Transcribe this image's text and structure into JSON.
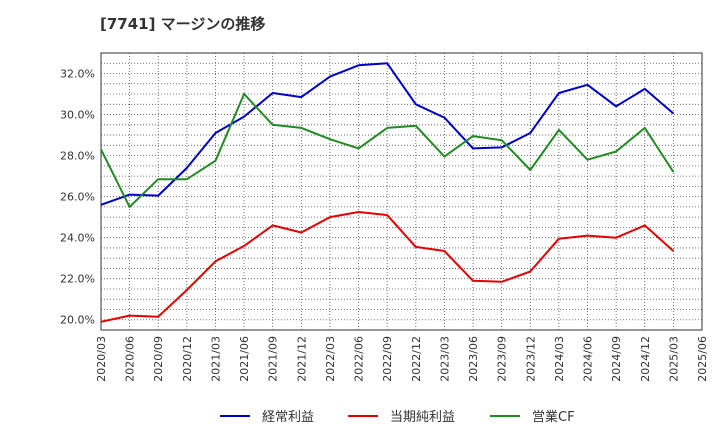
{
  "chart_data": {
    "type": "line",
    "title": "[7741]  マージンの推移",
    "x": [
      "2020/03",
      "2020/06",
      "2020/09",
      "2020/12",
      "2021/03",
      "2021/06",
      "2021/09",
      "2021/12",
      "2022/03",
      "2022/06",
      "2022/09",
      "2022/12",
      "2023/03",
      "2023/06",
      "2023/09",
      "2023/12",
      "2024/03",
      "2024/06",
      "2024/09",
      "2024/12",
      "2025/03",
      "2025/06"
    ],
    "ylim": [
      19.5,
      33.0
    ],
    "yticks": [
      20.0,
      22.0,
      24.0,
      26.0,
      28.0,
      30.0,
      32.0
    ],
    "ytick_labels": [
      "20.0%",
      "22.0%",
      "24.0%",
      "26.0%",
      "28.0%",
      "30.0%",
      "32.0%"
    ],
    "grid": true,
    "legend_position": "bottom",
    "series": [
      {
        "name": "経常利益",
        "color": "#0000cc",
        "values": [
          25.6,
          26.1,
          26.05,
          27.4,
          29.1,
          29.9,
          31.05,
          30.85,
          31.85,
          32.4,
          32.5,
          30.5,
          29.85,
          28.35,
          28.4,
          29.1,
          31.05,
          31.45,
          30.4,
          31.25,
          30.05,
          null
        ]
      },
      {
        "name": "当期純利益",
        "color": "#e60000",
        "values": [
          19.9,
          20.2,
          20.15,
          21.45,
          22.85,
          23.6,
          24.6,
          24.25,
          25.0,
          25.25,
          25.1,
          23.55,
          23.35,
          21.9,
          21.85,
          22.35,
          23.95,
          24.1,
          24.0,
          24.6,
          23.35,
          null
        ]
      },
      {
        "name": "営業CF",
        "color": "#228b22",
        "values": [
          28.3,
          25.5,
          26.85,
          26.85,
          27.75,
          31.0,
          29.5,
          29.35,
          28.8,
          28.35,
          29.35,
          29.45,
          27.95,
          28.95,
          28.75,
          27.3,
          29.25,
          27.8,
          28.2,
          29.35,
          27.2,
          null
        ]
      }
    ]
  }
}
